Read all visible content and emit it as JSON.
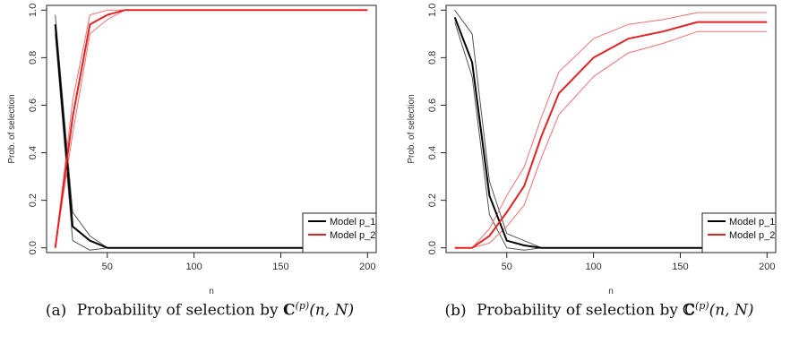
{
  "chart_data": [
    {
      "type": "line",
      "panel": "a",
      "xlabel": "n",
      "ylabel": "Prob. of selection",
      "xlim": [
        15,
        205
      ],
      "ylim": [
        -0.02,
        1.02
      ],
      "xticks": [
        50,
        100,
        150,
        200
      ],
      "yticks": [
        0.0,
        0.2,
        0.4,
        0.6,
        0.8,
        1.0
      ],
      "legend": "bottom-right",
      "grid": false,
      "series": [
        {
          "name": "Model p_1",
          "color": "#000000",
          "width": 2.0,
          "x": [
            20,
            30,
            40,
            50,
            60,
            70,
            80,
            100,
            120,
            140,
            160,
            200
          ],
          "y": [
            0.94,
            0.09,
            0.03,
            0.0,
            0.0,
            0.0,
            0.0,
            0.0,
            0.0,
            0.0,
            0.0,
            0.0
          ]
        },
        {
          "name": "",
          "color": "#555555",
          "width": 1.0,
          "x": [
            20,
            30,
            40,
            50,
            60,
            70,
            80,
            100,
            120,
            140,
            160,
            200
          ],
          "y": [
            0.98,
            0.15,
            0.05,
            0.0,
            0.0,
            0.0,
            0.0,
            0.0,
            0.0,
            0.0,
            0.0,
            0.0
          ]
        },
        {
          "name": "",
          "color": "#555555",
          "width": 1.0,
          "x": [
            20,
            30,
            40,
            50,
            60,
            70,
            80,
            100,
            120,
            140,
            160,
            200
          ],
          "y": [
            0.9,
            0.03,
            -0.01,
            0.0,
            0.0,
            0.0,
            0.0,
            0.0,
            0.0,
            0.0,
            0.0,
            0.0
          ]
        },
        {
          "name": "Model p_2",
          "color": "#e32222",
          "width": 2.0,
          "x": [
            20,
            30,
            40,
            50,
            60,
            70,
            80,
            100,
            120,
            140,
            160,
            200
          ],
          "y": [
            0.0,
            0.55,
            0.94,
            0.98,
            1.0,
            1.0,
            1.0,
            1.0,
            1.0,
            1.0,
            1.0,
            1.0
          ]
        },
        {
          "name": "",
          "color": "#f07070",
          "width": 1.0,
          "x": [
            20,
            30,
            40,
            50,
            60,
            70,
            80,
            100,
            120,
            140,
            160,
            200
          ],
          "y": [
            0.0,
            0.62,
            0.98,
            1.0,
            1.0,
            1.0,
            1.0,
            1.0,
            1.0,
            1.0,
            1.0,
            1.0
          ]
        },
        {
          "name": "",
          "color": "#f07070",
          "width": 1.0,
          "x": [
            20,
            30,
            40,
            50,
            60,
            70,
            80,
            100,
            120,
            140,
            160,
            200
          ],
          "y": [
            0.0,
            0.48,
            0.9,
            0.96,
            1.0,
            1.0,
            1.0,
            1.0,
            1.0,
            1.0,
            1.0,
            1.0
          ]
        }
      ]
    },
    {
      "type": "line",
      "panel": "b",
      "xlabel": "n",
      "ylabel": "Prob. of selection",
      "xlim": [
        15,
        205
      ],
      "ylim": [
        -0.02,
        1.02
      ],
      "xticks": [
        50,
        100,
        150,
        200
      ],
      "yticks": [
        0.0,
        0.2,
        0.4,
        0.6,
        0.8,
        1.0
      ],
      "legend": "bottom-right",
      "grid": false,
      "series": [
        {
          "name": "Model p_1",
          "color": "#000000",
          "width": 2.0,
          "x": [
            20,
            30,
            40,
            50,
            60,
            70,
            80,
            100,
            120,
            140,
            160,
            200
          ],
          "y": [
            0.97,
            0.78,
            0.22,
            0.03,
            0.01,
            0.0,
            0.0,
            0.0,
            0.0,
            0.0,
            0.0,
            0.0
          ]
        },
        {
          "name": "",
          "color": "#555555",
          "width": 1.0,
          "x": [
            20,
            30,
            40,
            50,
            60,
            70,
            80,
            100,
            120,
            140,
            160,
            200
          ],
          "y": [
            1.0,
            0.9,
            0.28,
            0.06,
            0.03,
            0.0,
            0.0,
            0.0,
            0.0,
            0.0,
            0.0,
            0.0
          ]
        },
        {
          "name": "",
          "color": "#555555",
          "width": 1.0,
          "x": [
            20,
            30,
            40,
            50,
            60,
            70,
            80,
            100,
            120,
            140,
            160,
            200
          ],
          "y": [
            0.95,
            0.72,
            0.14,
            0.0,
            -0.01,
            0.0,
            0.0,
            0.0,
            0.0,
            0.0,
            0.0,
            0.0
          ]
        },
        {
          "name": "Model p_2",
          "color": "#e32222",
          "width": 2.0,
          "x": [
            20,
            30,
            40,
            50,
            60,
            70,
            80,
            100,
            120,
            140,
            160,
            200
          ],
          "y": [
            0.0,
            0.0,
            0.05,
            0.15,
            0.26,
            0.47,
            0.65,
            0.8,
            0.88,
            0.91,
            0.95,
            0.95
          ]
        },
        {
          "name": "",
          "color": "#f07070",
          "width": 1.0,
          "x": [
            20,
            30,
            40,
            50,
            60,
            70,
            80,
            100,
            120,
            140,
            160,
            200
          ],
          "y": [
            0.0,
            0.0,
            0.08,
            0.22,
            0.34,
            0.55,
            0.74,
            0.88,
            0.94,
            0.96,
            0.99,
            0.99
          ]
        },
        {
          "name": "",
          "color": "#f07070",
          "width": 1.0,
          "x": [
            20,
            30,
            40,
            50,
            60,
            70,
            80,
            100,
            120,
            140,
            160,
            200
          ],
          "y": [
            0.0,
            0.0,
            0.02,
            0.09,
            0.18,
            0.38,
            0.56,
            0.72,
            0.82,
            0.86,
            0.91,
            0.91
          ]
        }
      ]
    }
  ],
  "captions": [
    {
      "tag": "(a)",
      "text": "Probability of selection by",
      "symbol": "C",
      "superscript": "(p)",
      "args": "(n, N)"
    },
    {
      "tag": "(b)",
      "text": "Probability of selection by",
      "symbol": "ℂ",
      "superscript": "(p)",
      "args": "(n, N)"
    }
  ]
}
